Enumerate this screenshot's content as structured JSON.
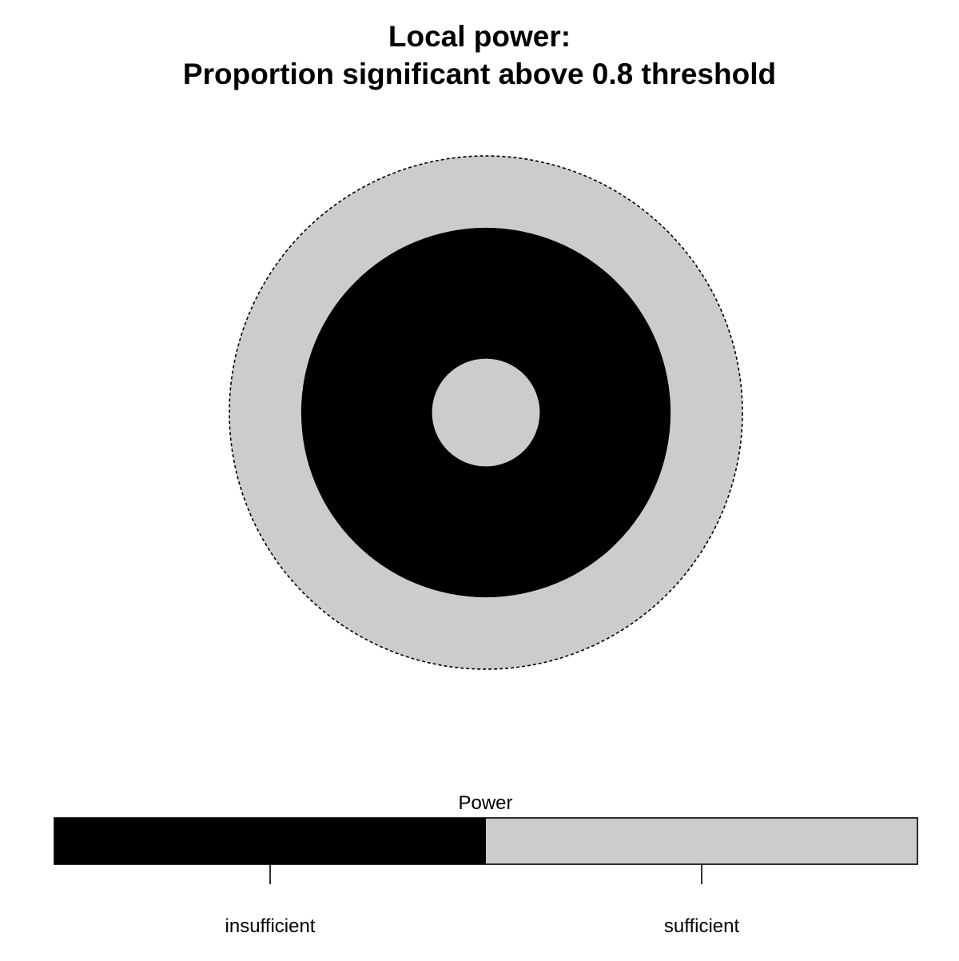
{
  "chart_data": {
    "type": "heatmap",
    "title": "Local power:",
    "subtitle": "Proportion significant above 0.8 threshold",
    "region": {
      "shape": "circle",
      "outer_radius": 1.0,
      "boundary": "dashed",
      "zones": [
        {
          "from_radius": 0.0,
          "to_radius": 0.21,
          "category": "sufficient"
        },
        {
          "from_radius": 0.21,
          "to_radius": 0.72,
          "category": "insufficient"
        },
        {
          "from_radius": 0.72,
          "to_radius": 1.0,
          "category": "sufficient"
        }
      ]
    },
    "legend": {
      "title": "Power",
      "placement": "bottom",
      "categories": [
        {
          "label": "insufficient",
          "color": "#000000"
        },
        {
          "label": "sufficient",
          "color": "#cccccc"
        }
      ]
    }
  }
}
